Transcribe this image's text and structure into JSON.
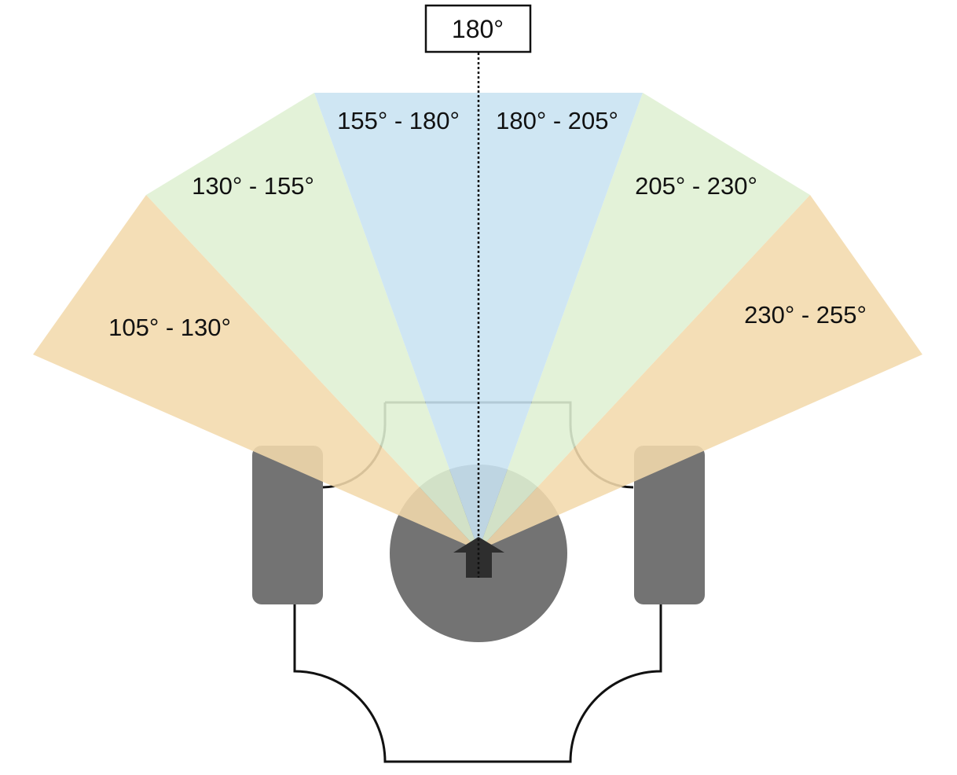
{
  "top_label": "180°",
  "sectors": [
    {
      "id": "105-130",
      "label": "105° - 130°",
      "color": "#f2d9ac"
    },
    {
      "id": "130-155",
      "label": "130° - 155°",
      "color": "#dff0d3"
    },
    {
      "id": "155-180",
      "label": "155° - 180°",
      "color": "#c8e3f1"
    },
    {
      "id": "180-205",
      "label": "180° - 205°",
      "color": "#c8e3f1"
    },
    {
      "id": "205-230",
      "label": "205° - 230°",
      "color": "#dff0d3"
    },
    {
      "id": "230-255",
      "label": "230° - 255°",
      "color": "#f2d9ac"
    }
  ],
  "colors": {
    "robot_part": "#737373",
    "arrow": "#2e2e2e",
    "outline": "#111111"
  }
}
